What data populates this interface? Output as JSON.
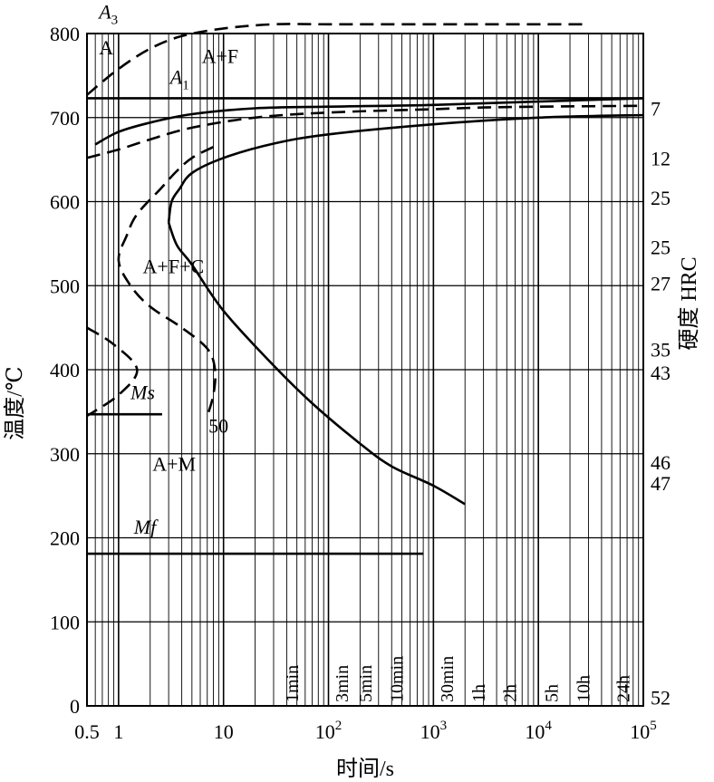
{
  "chart_data": {
    "type": "line",
    "title": "",
    "xlabel": "时间/s",
    "ylabel_left": "温度/℃",
    "ylabel_right": "硬度 HRC",
    "x_scale": "log",
    "xlim": [
      0.5,
      100000
    ],
    "ylim": [
      0,
      800
    ],
    "grid": true,
    "x_tick_labels": [
      {
        "x": 0.5,
        "label": "0.5"
      },
      {
        "x": 1,
        "label": "1"
      },
      {
        "x": 10,
        "label": "10"
      },
      {
        "x": 100,
        "label": "10",
        "sup": "2"
      },
      {
        "x": 1000,
        "label": "10",
        "sup": "3"
      },
      {
        "x": 10000,
        "label": "10",
        "sup": "4"
      },
      {
        "x": 100000,
        "label": "10",
        "sup": "5"
      }
    ],
    "y_ticks": [
      0,
      100,
      200,
      300,
      400,
      500,
      600,
      700,
      800
    ],
    "time_marks": [
      {
        "x": 60,
        "label": "1min"
      },
      {
        "x": 180,
        "label": "3min"
      },
      {
        "x": 300,
        "label": "5min"
      },
      {
        "x": 600,
        "label": "10min"
      },
      {
        "x": 1800,
        "label": "30min"
      },
      {
        "x": 3600,
        "label": "1h"
      },
      {
        "x": 7200,
        "label": "2h"
      },
      {
        "x": 18000,
        "label": "5h"
      },
      {
        "x": 36000,
        "label": "10h"
      },
      {
        "x": 86400,
        "label": "24h"
      }
    ],
    "hardness_labels": [
      {
        "y": 711,
        "label": "7"
      },
      {
        "y": 652,
        "label": "12"
      },
      {
        "y": 605,
        "label": "25"
      },
      {
        "y": 546,
        "label": "25"
      },
      {
        "y": 503,
        "label": "27"
      },
      {
        "y": 424,
        "label": "35"
      },
      {
        "y": 397,
        "label": "43"
      },
      {
        "y": 290,
        "label": "46"
      },
      {
        "y": 265,
        "label": "47"
      },
      {
        "y": 10,
        "label": "52"
      }
    ],
    "region_labels": [
      {
        "x": 0.65,
        "y": 775,
        "label": "A"
      },
      {
        "x": 6.2,
        "y": 765,
        "label": "A+F"
      },
      {
        "x": 1.7,
        "y": 515,
        "label": "A+F+C"
      },
      {
        "x": 2.1,
        "y": 280,
        "label": "A+M"
      }
    ],
    "line_labels": [
      {
        "x": 0.65,
        "y": 818,
        "label": "A",
        "sub": "3"
      },
      {
        "x": 3.1,
        "y": 740,
        "label": "A",
        "sub": "1"
      },
      {
        "x": 1.3,
        "y": 365,
        "label": "Ms"
      },
      {
        "x": 1.4,
        "y": 205,
        "label": "Mf"
      },
      {
        "x": 7.2,
        "y": 325,
        "label": "50"
      }
    ],
    "series": [
      {
        "style": "dashed",
        "points": [
          [
            0.5,
            727
          ],
          [
            1,
            758
          ],
          [
            2,
            782
          ],
          [
            4,
            797
          ],
          [
            10,
            806
          ],
          [
            30,
            811
          ],
          [
            100,
            811
          ],
          [
            1000,
            811
          ],
          [
            10000,
            811
          ],
          [
            30000,
            811
          ]
        ]
      },
      {
        "style": "solid",
        "points": [
          [
            0.5,
            723
          ],
          [
            100000,
            723
          ]
        ]
      },
      {
        "style": "solid",
        "points": [
          [
            0.6,
            668
          ],
          [
            1,
            683
          ],
          [
            2,
            694
          ],
          [
            5,
            704
          ],
          [
            20,
            711
          ],
          [
            100,
            713
          ],
          [
            1000,
            715
          ],
          [
            10000,
            719
          ],
          [
            100000,
            723
          ]
        ]
      },
      {
        "style": "dashed",
        "points": [
          [
            0.5,
            652
          ],
          [
            1,
            662
          ],
          [
            2,
            674
          ],
          [
            5,
            688
          ],
          [
            20,
            700
          ],
          [
            100,
            706
          ],
          [
            1000,
            710
          ],
          [
            3000,
            712
          ],
          [
            10000,
            713
          ],
          [
            100000,
            714
          ]
        ]
      },
      {
        "style": "solid",
        "points": [
          [
            3,
            575
          ],
          [
            3.2,
            600
          ],
          [
            3.8,
            615
          ],
          [
            5,
            634
          ],
          [
            10,
            652
          ],
          [
            30,
            669
          ],
          [
            100,
            680
          ],
          [
            1000,
            692
          ],
          [
            10000,
            700
          ],
          [
            100000,
            703
          ]
        ]
      },
      {
        "style": "solid",
        "points": [
          [
            3,
            575
          ],
          [
            3.6,
            548
          ],
          [
            5,
            525
          ],
          [
            10,
            470
          ],
          [
            30,
            405
          ],
          [
            70,
            360
          ],
          [
            200,
            312
          ],
          [
            400,
            285
          ],
          [
            1000,
            262
          ],
          [
            2000,
            240
          ]
        ]
      },
      {
        "style": "dashed",
        "points": [
          [
            8,
            665
          ],
          [
            5,
            652
          ],
          [
            3.5,
            635
          ],
          [
            2.5,
            615
          ],
          [
            1.5,
            585
          ],
          [
            1.2,
            560
          ],
          [
            1,
            530
          ],
          [
            1.3,
            500
          ],
          [
            2,
            475
          ],
          [
            4,
            450
          ],
          [
            7,
            425
          ],
          [
            8.3,
            400
          ],
          [
            8,
            370
          ],
          [
            7,
            345
          ]
        ]
      },
      {
        "style": "dashed",
        "points": [
          [
            0.5,
            450
          ],
          [
            0.9,
            430
          ],
          [
            1.5,
            400
          ],
          [
            1,
            370
          ],
          [
            0.5,
            345
          ]
        ]
      },
      {
        "style": "solid",
        "points": [
          [
            0.5,
            347
          ],
          [
            2.6,
            347
          ]
        ]
      },
      {
        "style": "solid",
        "points": [
          [
            0.5,
            181
          ],
          [
            800,
            181
          ]
        ]
      }
    ]
  }
}
